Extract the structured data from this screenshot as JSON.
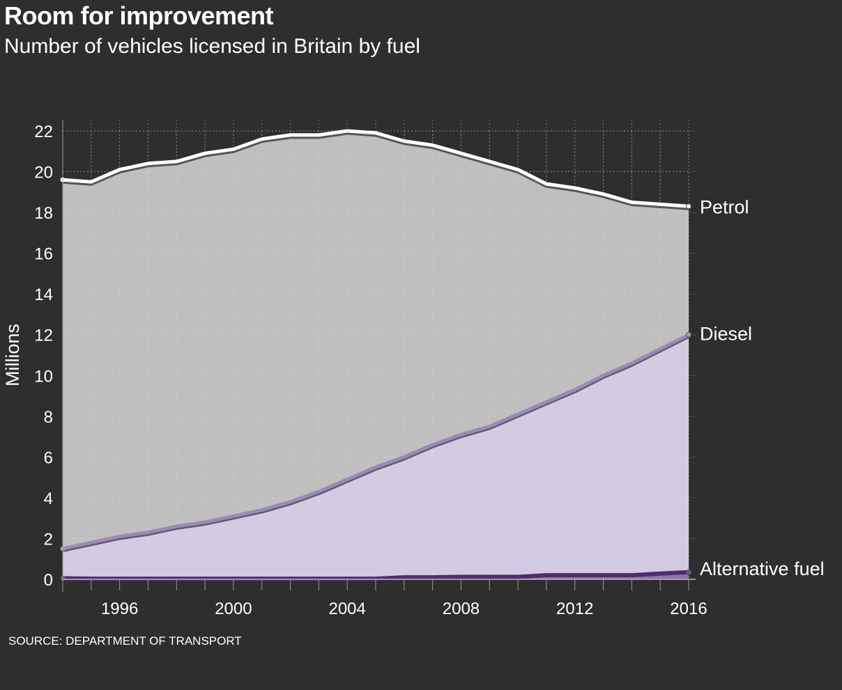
{
  "header": {
    "title": "Room for improvement",
    "subtitle": "Number of vehicles licensed in Britain by fuel"
  },
  "footer": {
    "source": "SOURCE: DEPARTMENT OF TRANSPORT"
  },
  "chart_data": {
    "type": "area",
    "title": "Room for improvement",
    "subtitle": "Number of vehicles licensed in Britain by fuel",
    "xlabel": "",
    "ylabel": "Millions",
    "x": [
      1994,
      1995,
      1996,
      1997,
      1998,
      1999,
      2000,
      2001,
      2002,
      2003,
      2004,
      2005,
      2006,
      2007,
      2008,
      2009,
      2010,
      2011,
      2012,
      2013,
      2014,
      2015,
      2016
    ],
    "xlim": [
      1994,
      2016
    ],
    "ylim": [
      0,
      22
    ],
    "x_ticks": [
      "1996",
      "2000",
      "2004",
      "2008",
      "2012",
      "2016"
    ],
    "y_ticks": [
      "0",
      "2",
      "4",
      "6",
      "8",
      "10",
      "12",
      "14",
      "16",
      "18",
      "20",
      "22"
    ],
    "grid": true,
    "series": [
      {
        "name": "Petrol",
        "color": "#ffffff",
        "fill": "#bfbfbf",
        "values": [
          19.6,
          19.5,
          20.1,
          20.4,
          20.5,
          20.9,
          21.1,
          21.6,
          21.8,
          21.8,
          22.0,
          21.9,
          21.5,
          21.3,
          20.9,
          20.5,
          20.1,
          19.4,
          19.2,
          18.9,
          18.5,
          18.4,
          18.3
        ]
      },
      {
        "name": "Diesel",
        "color": "#9b89b8",
        "fill": "#d3cae4",
        "values": [
          1.5,
          1.8,
          2.1,
          2.3,
          2.6,
          2.8,
          3.1,
          3.4,
          3.8,
          4.3,
          4.9,
          5.5,
          6.0,
          6.6,
          7.1,
          7.5,
          8.1,
          8.7,
          9.3,
          10.0,
          10.6,
          11.3,
          12.0
        ]
      },
      {
        "name": "Alternative fuel",
        "color": "#4f2c6e",
        "fill": "#8a76a6",
        "values": [
          0.05,
          0.03,
          0.03,
          0.03,
          0.03,
          0.03,
          0.03,
          0.03,
          0.03,
          0.03,
          0.03,
          0.03,
          0.1,
          0.1,
          0.12,
          0.12,
          0.12,
          0.2,
          0.2,
          0.2,
          0.2,
          0.28,
          0.35
        ]
      }
    ]
  }
}
